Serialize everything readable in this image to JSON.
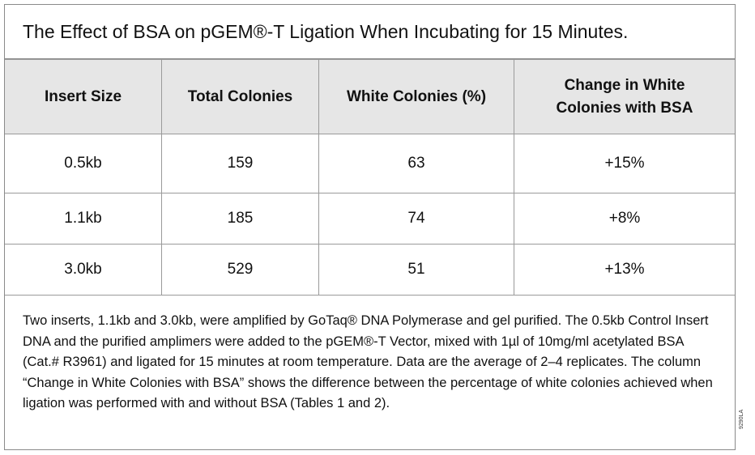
{
  "chart_data": {
    "type": "table",
    "title": "The Effect of BSA on pGEM®-T Ligation When Incubating for 15 Minutes.",
    "columns": [
      "Insert Size",
      "Total Colonies",
      "White Colonies (%)",
      "Change in White Colonies with BSA"
    ],
    "rows": [
      [
        "0.5kb",
        "159",
        "63",
        "+15%"
      ],
      [
        "1.1kb",
        "185",
        "74",
        "+8%"
      ],
      [
        "3.0kb",
        "529",
        "51",
        "+13%"
      ]
    ],
    "footnote": "Two inserts, 1.1kb and 3.0kb, were amplified by GoTaq® DNA Polymerase and gel purified. The 0.5kb Control Insert DNA and the purified amplimers were added to the pGEM®-T Vector, mixed with 1µl of 10mg/ml acetylated BSA (Cat.# R3961) and ligated for 15 minutes at room temperature. Data are the average of 2–4 replicates. The column “Change in White Colonies with BSA” shows the difference between the percentage of white colonies achieved when ligation was performed with and without BSA (Tables 1 and 2).",
    "code": "9290LA",
    "header_bg": "#e6e6e6"
  }
}
